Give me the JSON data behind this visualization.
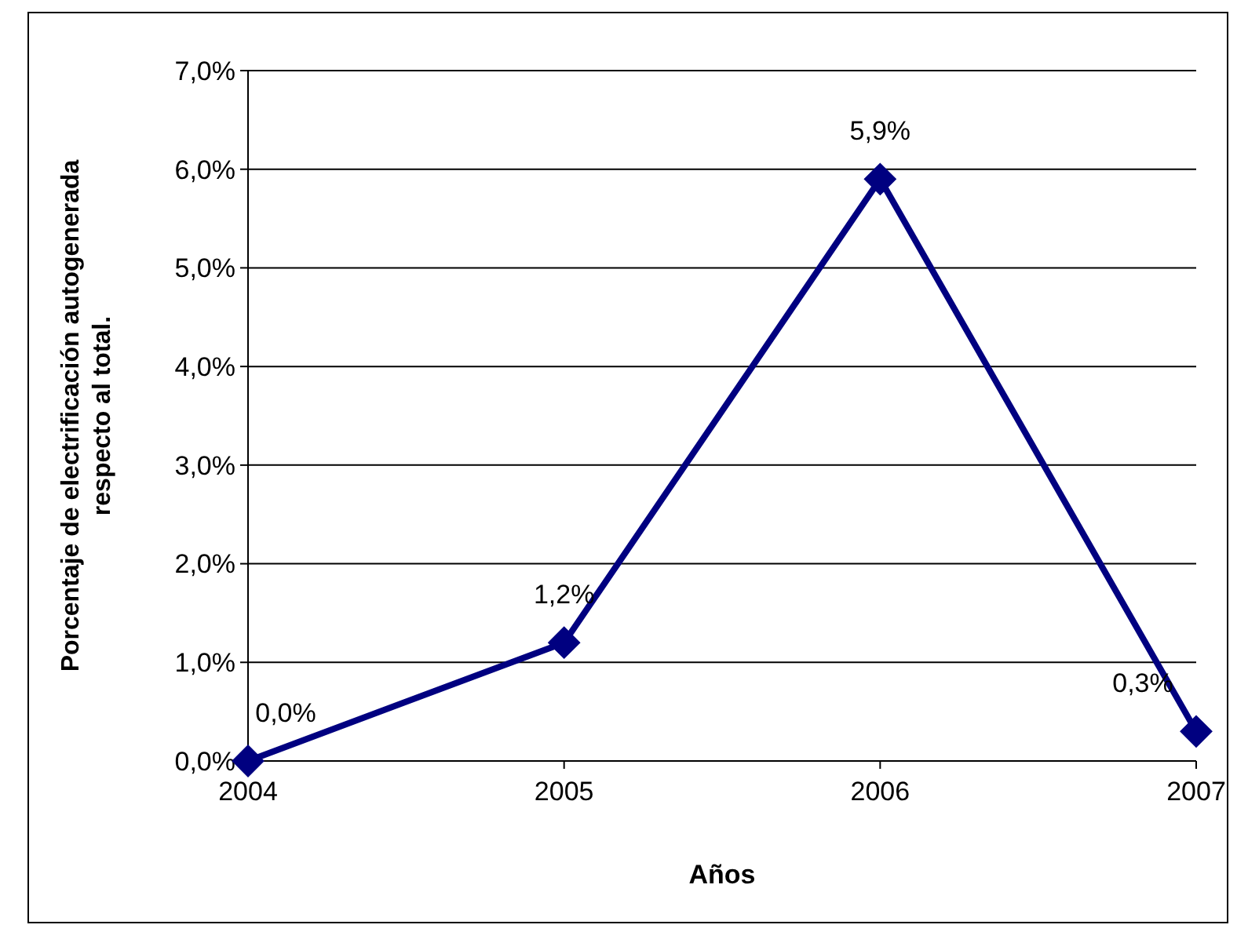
{
  "chart_data": {
    "type": "line",
    "xlabel": "Años",
    "ylabel": "Porcentaje de electrificación autogenerada respecto al total.",
    "categories": [
      "2004",
      "2005",
      "2006",
      "2007"
    ],
    "series": [
      {
        "color": "#000080",
        "values": [
          0,
          1.2,
          5.9,
          0.3
        ],
        "value_labels": [
          "0,0%",
          "1,2%",
          "5,9%",
          "0,3%"
        ]
      }
    ],
    "ylim": [
      0,
      7
    ],
    "yticks": [
      {
        "value": 0,
        "label": "0,0%"
      },
      {
        "value": 1,
        "label": "1,0%"
      },
      {
        "value": 2,
        "label": "2,0%"
      },
      {
        "value": 3,
        "label": "3,0%"
      },
      {
        "value": 4,
        "label": "4,0%"
      },
      {
        "value": 5,
        "label": "5,0%"
      },
      {
        "value": 6,
        "label": "6,0%"
      },
      {
        "value": 7,
        "label": "7,0%"
      }
    ],
    "grid": "y",
    "marker": "diamond",
    "line_style": "solid"
  }
}
